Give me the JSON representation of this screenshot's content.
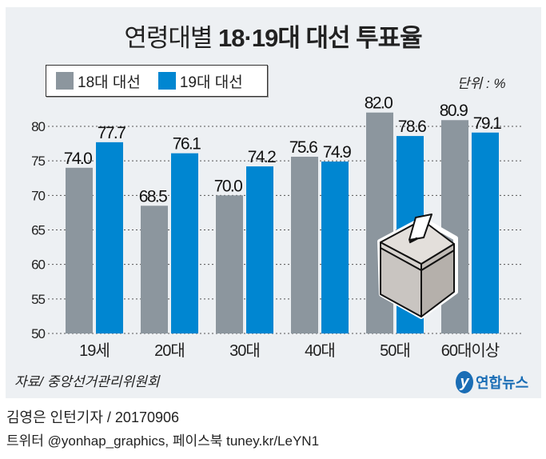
{
  "title": {
    "light": "연령대별",
    "bold": "18·19대 대선 투표율"
  },
  "unit_label": "단위 : %",
  "source": "자료/ 중앙선거관리위원회",
  "logo_text": "연합뉴스",
  "credit_line1": "김영은 인턴기자 / 20170906",
  "credit_line2": "트위터 @yonhap_graphics, 페이스북 tuney.kr/LeYN1",
  "chart_data": {
    "type": "bar",
    "title": "연령대별 18·19대 대선 투표율",
    "categories": [
      "19세",
      "20대",
      "30대",
      "40대",
      "50대",
      "60대이상"
    ],
    "series": [
      {
        "name": "18대 대선",
        "values": [
          74.0,
          68.5,
          70.0,
          75.6,
          82.0,
          80.9
        ],
        "color": "#8c969e"
      },
      {
        "name": "19대 대선",
        "values": [
          77.7,
          76.1,
          74.2,
          74.9,
          78.6,
          79.1
        ],
        "color": "#0086d1"
      }
    ],
    "ylim": [
      50,
      80
    ],
    "yticks": [
      50,
      55,
      60,
      65,
      70,
      75,
      80
    ],
    "grid": true,
    "legend": "top-left",
    "unit": "%"
  },
  "decor_icon": "ballot-box-icon"
}
